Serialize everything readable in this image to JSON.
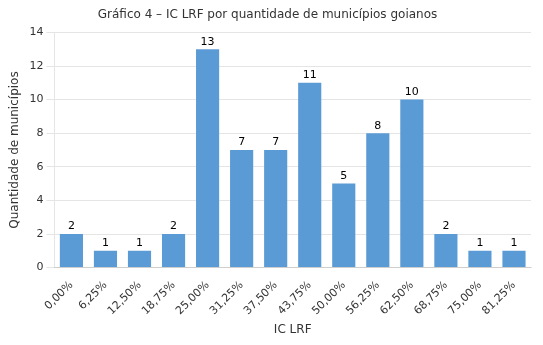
{
  "chart_data": {
    "type": "bar",
    "title": "Gráfico 4 – IC LRF por quantidade de municípios goianos",
    "xlabel": "IC LRF",
    "ylabel": "Quantidade de municípios",
    "categories": [
      "0,00%",
      "6,25%",
      "12,50%",
      "18,75%",
      "25,00%",
      "31,25%",
      "37,50%",
      "43,75%",
      "50,00%",
      "56,25%",
      "62,50%",
      "68,75%",
      "75,00%",
      "81,25%"
    ],
    "values": [
      2,
      1,
      1,
      2,
      13,
      7,
      7,
      11,
      5,
      8,
      10,
      2,
      1,
      1
    ],
    "color": "#5B9BD5",
    "ylim": [
      0,
      14
    ],
    "yticks": [
      0,
      2,
      4,
      6,
      8,
      10,
      12,
      14
    ],
    "grid": true,
    "data_labels": true
  }
}
